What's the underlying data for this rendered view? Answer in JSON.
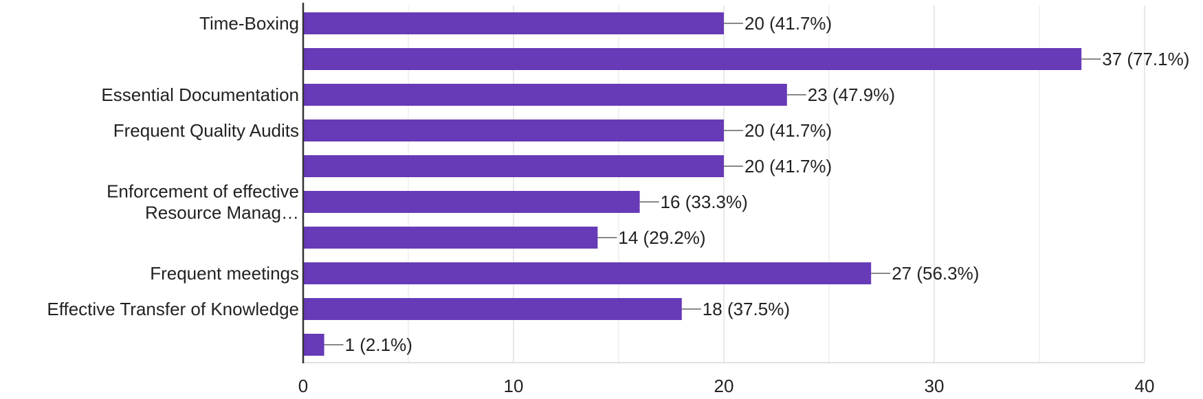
{
  "chart_data": {
    "type": "bar",
    "orientation": "horizontal",
    "title": "",
    "xlabel": "",
    "ylabel": "",
    "categories": [
      "Time-Boxing",
      "",
      "Essential Documentation",
      "Frequent Quality Audits",
      "",
      "Enforcement of effective Resource Manag…",
      "",
      "Frequent meetings",
      "Effective Transfer of Knowledge",
      ""
    ],
    "category_lines": [
      [
        "Time-Boxing"
      ],
      [],
      [
        "Essential Documentation"
      ],
      [
        "Frequent Quality Audits"
      ],
      [],
      [
        "Enforcement of effective",
        "Resource Manag…"
      ],
      [],
      [
        "Frequent meetings"
      ],
      [
        "Effective Transfer of Knowledge"
      ],
      []
    ],
    "values": [
      20,
      37,
      23,
      20,
      20,
      16,
      14,
      27,
      18,
      1
    ],
    "data_labels": [
      "20 (41.7%)",
      "37 (77.1%)",
      "23 (47.9%)",
      "20 (41.7%)",
      "20 (41.7%)",
      "16 (33.3%)",
      "14 (29.2%)",
      "27 (56.3%)",
      "18 (37.5%)",
      "1 (2.1%)"
    ],
    "xlim": [
      0,
      40
    ],
    "xticks": [
      0,
      10,
      20,
      30,
      40
    ],
    "xtick_labels": [
      "0",
      "10",
      "20",
      "30",
      "40"
    ],
    "minor_grid_step": 5,
    "grid": true,
    "bar_color": "#673ab7"
  }
}
